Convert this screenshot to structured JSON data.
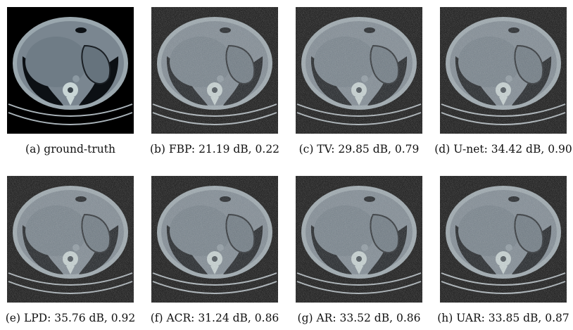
{
  "panels": [
    {
      "id": "a",
      "caption": "(a)  ground-truth",
      "noise": "none"
    },
    {
      "id": "b",
      "caption": "(b)  FBP: 21.19 dB, 0.22",
      "noise": "heavy"
    },
    {
      "id": "c",
      "caption": "(c)  TV: 29.85 dB, 0.79",
      "noise": "blocky"
    },
    {
      "id": "d",
      "caption": "(d)  U-net: 34.42 dB, 0.90",
      "noise": "smooth"
    },
    {
      "id": "e",
      "caption": "(e)  LPD: 35.76 dB, 0.92",
      "noise": "smooth"
    },
    {
      "id": "f",
      "caption": "(f)  ACR: 31.24 dB, 0.86",
      "noise": "light"
    },
    {
      "id": "g",
      "caption": "(g)  AR: 33.52 dB, 0.86",
      "noise": "light"
    },
    {
      "id": "h",
      "caption": "(h)  UAR: 33.85 dB, 0.87",
      "noise": "light"
    }
  ],
  "colors": {
    "tissue": "#7a8690",
    "liver": "#6f7c86",
    "fat_ring": "#9aa7ae",
    "lung": "#0c1014",
    "bone": "#c9d6d6",
    "background": "#000000"
  }
}
